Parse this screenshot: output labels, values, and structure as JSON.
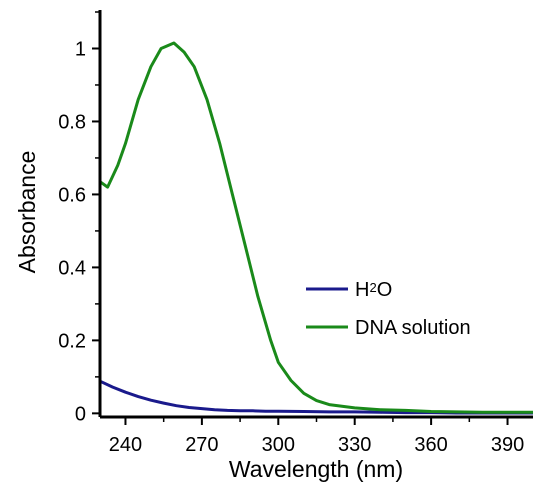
{
  "chart_data": {
    "type": "line",
    "xlabel": "Wavelength (nm)",
    "ylabel": "Absorbance",
    "xlim": [
      230,
      400
    ],
    "ylim": [
      -0.01,
      1.1
    ],
    "xticks": [
      240,
      270,
      300,
      330,
      360,
      390
    ],
    "yticks": [
      0,
      0.2,
      0.4,
      0.6,
      0.8,
      1
    ],
    "ytick_labels": [
      "0",
      "0.2",
      "0.4",
      "0.6",
      "0.8",
      "1"
    ],
    "grid": false,
    "legend_position": "center-right",
    "series": [
      {
        "name": "H2O",
        "color": "#1a1a8c",
        "points": [
          [
            230,
            0.088
          ],
          [
            235,
            0.072
          ],
          [
            240,
            0.058
          ],
          [
            245,
            0.046
          ],
          [
            250,
            0.036
          ],
          [
            255,
            0.028
          ],
          [
            260,
            0.021
          ],
          [
            265,
            0.016
          ],
          [
            270,
            0.013
          ],
          [
            275,
            0.01
          ],
          [
            280,
            0.008
          ],
          [
            285,
            0.007
          ],
          [
            290,
            0.007
          ],
          [
            295,
            0.006
          ],
          [
            300,
            0.006
          ],
          [
            310,
            0.005
          ],
          [
            320,
            0.004
          ],
          [
            330,
            0.004
          ],
          [
            340,
            0.003
          ],
          [
            350,
            0.002
          ],
          [
            360,
            0.002
          ],
          [
            370,
            0.001
          ],
          [
            380,
            0.001
          ],
          [
            390,
            0.001
          ],
          [
            400,
            0.001
          ]
        ]
      },
      {
        "name": "DNA solution",
        "color": "#1a8a1a",
        "points": [
          [
            230,
            0.635
          ],
          [
            233,
            0.62
          ],
          [
            237,
            0.68
          ],
          [
            240,
            0.74
          ],
          [
            245,
            0.86
          ],
          [
            250,
            0.95
          ],
          [
            254,
            1.0
          ],
          [
            259,
            1.015
          ],
          [
            263,
            0.99
          ],
          [
            267,
            0.95
          ],
          [
            272,
            0.86
          ],
          [
            277,
            0.74
          ],
          [
            282,
            0.6
          ],
          [
            287,
            0.46
          ],
          [
            292,
            0.32
          ],
          [
            297,
            0.2
          ],
          [
            300,
            0.14
          ],
          [
            305,
            0.09
          ],
          [
            310,
            0.055
          ],
          [
            315,
            0.035
          ],
          [
            320,
            0.024
          ],
          [
            330,
            0.015
          ],
          [
            340,
            0.01
          ],
          [
            350,
            0.008
          ],
          [
            360,
            0.005
          ],
          [
            370,
            0.004
          ],
          [
            380,
            0.003
          ],
          [
            390,
            0.003
          ],
          [
            400,
            0.003
          ]
        ]
      }
    ],
    "legend": {
      "h2o_main": "H",
      "h2o_sub": "2",
      "h2o_tail": "O",
      "dna": "DNA solution"
    }
  }
}
